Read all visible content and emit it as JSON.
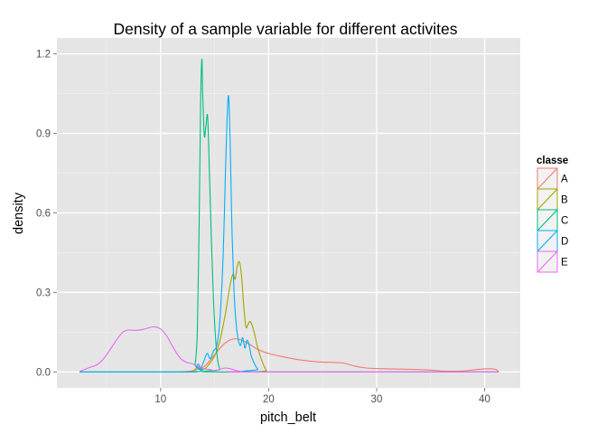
{
  "chart_data": {
    "type": "line",
    "title": "Density of a sample variable for different activites",
    "xlabel": "pitch_belt",
    "ylabel": "density",
    "xlim": [
      0.4,
      43.3
    ],
    "ylim": [
      -0.06,
      1.26
    ],
    "x_ticks": [
      10,
      20,
      30,
      40
    ],
    "y_ticks": [
      0.0,
      0.3,
      0.6,
      0.9,
      1.2
    ],
    "x_tick_labels": [
      "10",
      "20",
      "30",
      "40"
    ],
    "y_tick_labels": [
      "0.0",
      "0.3",
      "0.6",
      "0.9",
      "1.2"
    ],
    "grid": true,
    "legend": {
      "title": "classe",
      "position": "right"
    },
    "series": [
      {
        "name": "A",
        "color": "#F8766D",
        "points": [
          [
            2.5,
            0
          ],
          [
            10,
            0
          ],
          [
            12,
            0.001
          ],
          [
            13,
            0.005
          ],
          [
            14,
            0.02
          ],
          [
            14.5,
            0.04
          ],
          [
            15,
            0.065
          ],
          [
            15.5,
            0.09
          ],
          [
            16,
            0.11
          ],
          [
            16.5,
            0.122
          ],
          [
            17,
            0.125
          ],
          [
            17.5,
            0.12
          ],
          [
            18,
            0.11
          ],
          [
            18.5,
            0.098
          ],
          [
            19,
            0.085
          ],
          [
            20,
            0.07
          ],
          [
            21,
            0.06
          ],
          [
            22,
            0.052
          ],
          [
            23,
            0.045
          ],
          [
            24,
            0.04
          ],
          [
            25,
            0.037
          ],
          [
            26,
            0.036
          ],
          [
            27,
            0.033
          ],
          [
            28,
            0.022
          ],
          [
            29,
            0.015
          ],
          [
            30,
            0.013
          ],
          [
            31,
            0.012
          ],
          [
            32,
            0.011
          ],
          [
            33,
            0.01
          ],
          [
            34,
            0.009
          ],
          [
            35,
            0.007
          ],
          [
            36,
            0.004
          ],
          [
            37,
            0.003
          ],
          [
            38,
            0.004
          ],
          [
            39,
            0.008
          ],
          [
            40,
            0.012
          ],
          [
            41,
            0.01
          ],
          [
            41.3,
            0
          ]
        ]
      },
      {
        "name": "B",
        "color": "#A3A500",
        "points": [
          [
            2.5,
            0
          ],
          [
            12.5,
            0
          ],
          [
            13,
            0.003
          ],
          [
            13.5,
            0.02
          ],
          [
            14,
            0.01
          ],
          [
            14.5,
            0.03
          ],
          [
            15,
            0.06
          ],
          [
            15.5,
            0.12
          ],
          [
            16,
            0.22
          ],
          [
            16.4,
            0.32
          ],
          [
            16.7,
            0.37
          ],
          [
            16.9,
            0.35
          ],
          [
            17.1,
            0.4
          ],
          [
            17.3,
            0.415
          ],
          [
            17.5,
            0.36
          ],
          [
            17.7,
            0.25
          ],
          [
            17.9,
            0.17
          ],
          [
            18.1,
            0.18
          ],
          [
            18.3,
            0.19
          ],
          [
            18.6,
            0.16
          ],
          [
            19,
            0.09
          ],
          [
            19.4,
            0.04
          ],
          [
            19.8,
            0.005
          ],
          [
            20,
            0
          ],
          [
            41.3,
            0
          ]
        ]
      },
      {
        "name": "C",
        "color": "#00BF7D",
        "points": [
          [
            2.5,
            0
          ],
          [
            13,
            0
          ],
          [
            13.2,
            0.03
          ],
          [
            13.4,
            0.15
          ],
          [
            13.55,
            0.5
          ],
          [
            13.7,
            1.0
          ],
          [
            13.82,
            1.18
          ],
          [
            13.9,
            1.05
          ],
          [
            14.05,
            0.89
          ],
          [
            14.2,
            0.93
          ],
          [
            14.35,
            0.965
          ],
          [
            14.5,
            0.78
          ],
          [
            14.7,
            0.5
          ],
          [
            14.9,
            0.27
          ],
          [
            15.1,
            0.12
          ],
          [
            15.3,
            0.04
          ],
          [
            15.5,
            0.01
          ],
          [
            15.8,
            0
          ],
          [
            41.3,
            0
          ]
        ]
      },
      {
        "name": "D",
        "color": "#00B0F6",
        "points": [
          [
            2.5,
            0
          ],
          [
            13,
            0
          ],
          [
            13.3,
            0.02
          ],
          [
            13.5,
            0.03
          ],
          [
            13.7,
            0.015
          ],
          [
            14,
            0.04
          ],
          [
            14.3,
            0.07
          ],
          [
            14.6,
            0.05
          ],
          [
            14.9,
            0.08
          ],
          [
            15.2,
            0.1
          ],
          [
            15.5,
            0.2
          ],
          [
            15.8,
            0.45
          ],
          [
            16,
            0.75
          ],
          [
            16.15,
            0.95
          ],
          [
            16.3,
            1.04
          ],
          [
            16.45,
            0.85
          ],
          [
            16.6,
            0.55
          ],
          [
            16.8,
            0.3
          ],
          [
            17,
            0.18
          ],
          [
            17.2,
            0.12
          ],
          [
            17.4,
            0.1
          ],
          [
            17.6,
            0.13
          ],
          [
            17.8,
            0.09
          ],
          [
            18,
            0.12
          ],
          [
            18.2,
            0.1
          ],
          [
            18.4,
            0.06
          ],
          [
            18.7,
            0.03
          ],
          [
            19,
            0.01
          ],
          [
            19.3,
            0
          ],
          [
            41.3,
            0
          ]
        ]
      },
      {
        "name": "E",
        "color": "#E76BF3",
        "points": [
          [
            2.5,
            0.002
          ],
          [
            3,
            0.01
          ],
          [
            3.5,
            0.018
          ],
          [
            4,
            0.025
          ],
          [
            4.5,
            0.04
          ],
          [
            5,
            0.065
          ],
          [
            5.5,
            0.095
          ],
          [
            6,
            0.125
          ],
          [
            6.5,
            0.15
          ],
          [
            7,
            0.158
          ],
          [
            7.5,
            0.157
          ],
          [
            8,
            0.158
          ],
          [
            8.5,
            0.162
          ],
          [
            9,
            0.168
          ],
          [
            9.5,
            0.17
          ],
          [
            10,
            0.162
          ],
          [
            10.5,
            0.14
          ],
          [
            11,
            0.105
          ],
          [
            11.5,
            0.07
          ],
          [
            12,
            0.045
          ],
          [
            12.5,
            0.035
          ],
          [
            13,
            0.03
          ],
          [
            13.5,
            0.02
          ],
          [
            14,
            0.012
          ],
          [
            14.5,
            0.01
          ],
          [
            15,
            0.005
          ],
          [
            15.5,
            0.01
          ],
          [
            16,
            0.015
          ],
          [
            16.5,
            0.012
          ],
          [
            17,
            0.005
          ],
          [
            17.5,
            0.002
          ],
          [
            18,
            0
          ],
          [
            41.3,
            0
          ]
        ]
      }
    ]
  }
}
